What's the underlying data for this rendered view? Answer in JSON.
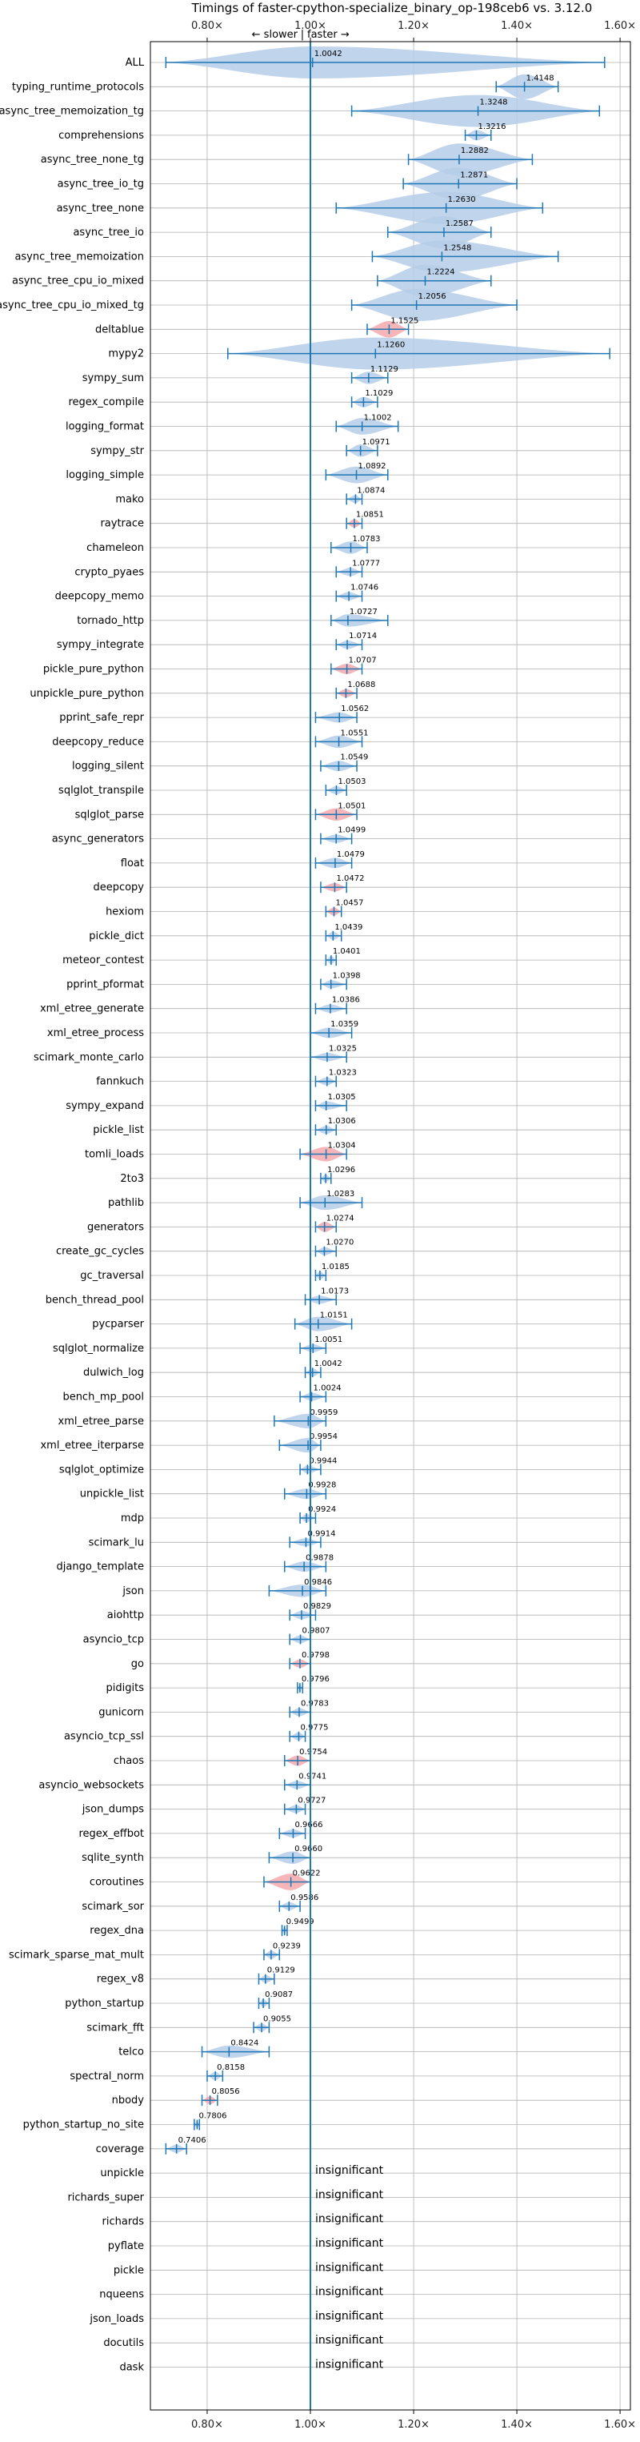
{
  "chart_data": {
    "type": "violin",
    "title": "Timings of faster-cpython-specialize_binary_op-198ceb6 vs. 3.12.0",
    "direction_slower": "← slower",
    "direction_separator": "|",
    "direction_faster": "faster →",
    "xlim": [
      0.69,
      1.62
    ],
    "reference": 1.0,
    "x_ticks": [
      {
        "value": 0.8,
        "label": "0.80×"
      },
      {
        "value": 1.0,
        "label": "1.00×"
      },
      {
        "value": 1.2,
        "label": "1.20×"
      },
      {
        "value": 1.4,
        "label": "1.40×"
      },
      {
        "value": 1.6,
        "label": "1.60×"
      }
    ],
    "grid": true,
    "colors": {
      "normal": "#b5cde8",
      "highlight": "#f4a9ad",
      "line": "#1f77b4",
      "grid": "#b0b0b0"
    },
    "benchmarks": [
      {
        "name": "ALL",
        "value": 1.0042,
        "label": "1.0042",
        "lo": 0.72,
        "hi": 1.57,
        "spread": 0.1
      },
      {
        "name": "typing_runtime_protocols",
        "value": 1.4148,
        "label": "1.4148",
        "lo": 1.36,
        "hi": 1.48,
        "spread": 0.06
      },
      {
        "name": "async_tree_memoization_tg",
        "value": 1.3248,
        "label": "1.3248",
        "lo": 1.08,
        "hi": 1.56,
        "spread": 0.2
      },
      {
        "name": "comprehensions",
        "value": 1.3216,
        "label": "1.3216",
        "lo": 1.3,
        "hi": 1.35,
        "spread": 0.025
      },
      {
        "name": "async_tree_none_tg",
        "value": 1.2882,
        "label": "1.2882",
        "lo": 1.19,
        "hi": 1.43,
        "spread": 0.12
      },
      {
        "name": "async_tree_io_tg",
        "value": 1.2871,
        "label": "1.2871",
        "lo": 1.18,
        "hi": 1.4,
        "spread": 0.11
      },
      {
        "name": "async_tree_none",
        "value": 1.263,
        "label": "1.2630",
        "lo": 1.05,
        "hi": 1.45,
        "spread": 0.18
      },
      {
        "name": "async_tree_io",
        "value": 1.2587,
        "label": "1.2587",
        "lo": 1.15,
        "hi": 1.35,
        "spread": 0.1
      },
      {
        "name": "async_tree_memoization",
        "value": 1.2548,
        "label": "1.2548",
        "lo": 1.12,
        "hi": 1.48,
        "spread": 0.15
      },
      {
        "name": "async_tree_cpu_io_mixed",
        "value": 1.2224,
        "label": "1.2224",
        "lo": 1.13,
        "hi": 1.35,
        "spread": 0.1
      },
      {
        "name": "async_tree_cpu_io_mixed_tg",
        "value": 1.2056,
        "label": "1.2056",
        "lo": 1.08,
        "hi": 1.4,
        "spread": 0.14
      },
      {
        "name": "deltablue",
        "value": 1.1525,
        "label": "1.1525",
        "lo": 1.11,
        "hi": 1.19,
        "spread": 0.04,
        "highlight": true
      },
      {
        "name": "mypy2",
        "value": 1.126,
        "label": "1.1260",
        "lo": 0.84,
        "hi": 1.58,
        "spread": 0.25
      },
      {
        "name": "sympy_sum",
        "value": 1.1129,
        "label": "1.1129",
        "lo": 1.08,
        "hi": 1.15,
        "spread": 0.03
      },
      {
        "name": "regex_compile",
        "value": 1.1029,
        "label": "1.1029",
        "lo": 1.08,
        "hi": 1.13,
        "spread": 0.025
      },
      {
        "name": "logging_format",
        "value": 1.1002,
        "label": "1.1002",
        "lo": 1.05,
        "hi": 1.17,
        "spread": 0.04
      },
      {
        "name": "sympy_str",
        "value": 1.0971,
        "label": "1.0971",
        "lo": 1.07,
        "hi": 1.13,
        "spread": 0.03
      },
      {
        "name": "logging_simple",
        "value": 1.0892,
        "label": "1.0892",
        "lo": 1.03,
        "hi": 1.15,
        "spread": 0.04
      },
      {
        "name": "mako",
        "value": 1.0874,
        "label": "1.0874",
        "lo": 1.07,
        "hi": 1.1,
        "spread": 0.015
      },
      {
        "name": "raytrace",
        "value": 1.0851,
        "label": "1.0851",
        "lo": 1.07,
        "hi": 1.1,
        "spread": 0.02,
        "highlight": true
      },
      {
        "name": "chameleon",
        "value": 1.0783,
        "label": "1.0783",
        "lo": 1.04,
        "hi": 1.11,
        "spread": 0.03
      },
      {
        "name": "crypto_pyaes",
        "value": 1.0777,
        "label": "1.0777",
        "lo": 1.05,
        "hi": 1.1,
        "spread": 0.02
      },
      {
        "name": "deepcopy_memo",
        "value": 1.0746,
        "label": "1.0746",
        "lo": 1.05,
        "hi": 1.1,
        "spread": 0.02
      },
      {
        "name": "tornado_http",
        "value": 1.0727,
        "label": "1.0727",
        "lo": 1.04,
        "hi": 1.15,
        "spread": 0.03
      },
      {
        "name": "sympy_integrate",
        "value": 1.0714,
        "label": "1.0714",
        "lo": 1.05,
        "hi": 1.1,
        "spread": 0.02
      },
      {
        "name": "pickle_pure_python",
        "value": 1.0707,
        "label": "1.0707",
        "lo": 1.04,
        "hi": 1.1,
        "spread": 0.025,
        "highlight": true
      },
      {
        "name": "unpickle_pure_python",
        "value": 1.0688,
        "label": "1.0688",
        "lo": 1.05,
        "hi": 1.09,
        "spread": 0.02,
        "highlight": true
      },
      {
        "name": "pprint_safe_repr",
        "value": 1.0562,
        "label": "1.0562",
        "lo": 1.01,
        "hi": 1.09,
        "spread": 0.025
      },
      {
        "name": "deepcopy_reduce",
        "value": 1.0551,
        "label": "1.0551",
        "lo": 1.01,
        "hi": 1.1,
        "spread": 0.03
      },
      {
        "name": "logging_silent",
        "value": 1.0549,
        "label": "1.0549",
        "lo": 1.02,
        "hi": 1.09,
        "spread": 0.025
      },
      {
        "name": "sqlglot_transpile",
        "value": 1.0503,
        "label": "1.0503",
        "lo": 1.03,
        "hi": 1.07,
        "spread": 0.015
      },
      {
        "name": "sqlglot_parse",
        "value": 1.0501,
        "label": "1.0501",
        "lo": 1.01,
        "hi": 1.09,
        "spread": 0.03,
        "highlight": true
      },
      {
        "name": "async_generators",
        "value": 1.0499,
        "label": "1.0499",
        "lo": 1.02,
        "hi": 1.08,
        "spread": 0.02
      },
      {
        "name": "float",
        "value": 1.0479,
        "label": "1.0479",
        "lo": 1.01,
        "hi": 1.08,
        "spread": 0.025
      },
      {
        "name": "deepcopy",
        "value": 1.0472,
        "label": "1.0472",
        "lo": 1.02,
        "hi": 1.07,
        "spread": 0.02,
        "highlight": true
      },
      {
        "name": "hexiom",
        "value": 1.0457,
        "label": "1.0457",
        "lo": 1.03,
        "hi": 1.06,
        "spread": 0.015,
        "highlight": true
      },
      {
        "name": "pickle_dict",
        "value": 1.0439,
        "label": "1.0439",
        "lo": 1.03,
        "hi": 1.06,
        "spread": 0.01
      },
      {
        "name": "meteor_contest",
        "value": 1.0401,
        "label": "1.0401",
        "lo": 1.03,
        "hi": 1.05,
        "spread": 0.01
      },
      {
        "name": "pprint_pformat",
        "value": 1.0398,
        "label": "1.0398",
        "lo": 1.02,
        "hi": 1.07,
        "spread": 0.02
      },
      {
        "name": "xml_etree_generate",
        "value": 1.0386,
        "label": "1.0386",
        "lo": 1.01,
        "hi": 1.07,
        "spread": 0.02
      },
      {
        "name": "xml_etree_process",
        "value": 1.0359,
        "label": "1.0359",
        "lo": 1.0,
        "hi": 1.08,
        "spread": 0.025
      },
      {
        "name": "scimark_monte_carlo",
        "value": 1.0325,
        "label": "1.0325",
        "lo": 1.0,
        "hi": 1.07,
        "spread": 0.02
      },
      {
        "name": "fannkuch",
        "value": 1.0323,
        "label": "1.0323",
        "lo": 1.01,
        "hi": 1.05,
        "spread": 0.015
      },
      {
        "name": "sympy_expand",
        "value": 1.0305,
        "label": "1.0305",
        "lo": 1.01,
        "hi": 1.07,
        "spread": 0.02
      },
      {
        "name": "pickle_list",
        "value": 1.0306,
        "label": "1.0306",
        "lo": 1.01,
        "hi": 1.05,
        "spread": 0.015
      },
      {
        "name": "tomli_loads",
        "value": 1.0304,
        "label": "1.0304",
        "lo": 0.98,
        "hi": 1.07,
        "spread": 0.035,
        "highlight": true
      },
      {
        "name": "2to3",
        "value": 1.0296,
        "label": "1.0296",
        "lo": 1.02,
        "hi": 1.04,
        "spread": 0.01
      },
      {
        "name": "pathlib",
        "value": 1.0283,
        "label": "1.0283",
        "lo": 0.98,
        "hi": 1.1,
        "spread": 0.035
      },
      {
        "name": "generators",
        "value": 1.0274,
        "label": "1.0274",
        "lo": 1.01,
        "hi": 1.05,
        "spread": 0.025,
        "highlight": true
      },
      {
        "name": "create_gc_cycles",
        "value": 1.027,
        "label": "1.0270",
        "lo": 1.01,
        "hi": 1.05,
        "spread": 0.015
      },
      {
        "name": "gc_traversal",
        "value": 1.0185,
        "label": "1.0185",
        "lo": 1.01,
        "hi": 1.03,
        "spread": 0.01
      },
      {
        "name": "bench_thread_pool",
        "value": 1.0173,
        "label": "1.0173",
        "lo": 0.99,
        "hi": 1.05,
        "spread": 0.01
      },
      {
        "name": "pycparser",
        "value": 1.0151,
        "label": "1.0151",
        "lo": 0.97,
        "hi": 1.08,
        "spread": 0.035
      },
      {
        "name": "sqlglot_normalize",
        "value": 1.0051,
        "label": "1.0051",
        "lo": 0.98,
        "hi": 1.03,
        "spread": 0.015
      },
      {
        "name": "dulwich_log",
        "value": 1.0042,
        "label": "1.0042",
        "lo": 0.99,
        "hi": 1.02,
        "spread": 0.01
      },
      {
        "name": "bench_mp_pool",
        "value": 1.0024,
        "label": "1.0024",
        "lo": 0.98,
        "hi": 1.03,
        "spread": 0.015
      },
      {
        "name": "xml_etree_parse",
        "value": 0.9959,
        "label": "0.9959",
        "lo": 0.93,
        "hi": 1.03,
        "spread": 0.035
      },
      {
        "name": "xml_etree_iterparse",
        "value": 0.9954,
        "label": "0.9954",
        "lo": 0.94,
        "hi": 1.02,
        "spread": 0.035
      },
      {
        "name": "sqlglot_optimize",
        "value": 0.9944,
        "label": "0.9944",
        "lo": 0.98,
        "hi": 1.02,
        "spread": 0.015
      },
      {
        "name": "unpickle_list",
        "value": 0.9928,
        "label": "0.9928",
        "lo": 0.95,
        "hi": 1.03,
        "spread": 0.025
      },
      {
        "name": "mdp",
        "value": 0.9924,
        "label": "0.9924",
        "lo": 0.98,
        "hi": 1.01,
        "spread": 0.01
      },
      {
        "name": "scimark_lu",
        "value": 0.9914,
        "label": "0.9914",
        "lo": 0.96,
        "hi": 1.02,
        "spread": 0.015
      },
      {
        "name": "django_template",
        "value": 0.9878,
        "label": "0.9878",
        "lo": 0.95,
        "hi": 1.03,
        "spread": 0.025
      },
      {
        "name": "json",
        "value": 0.9846,
        "label": "0.9846",
        "lo": 0.92,
        "hi": 1.03,
        "spread": 0.03
      },
      {
        "name": "aiohttp",
        "value": 0.9829,
        "label": "0.9829",
        "lo": 0.96,
        "hi": 1.01,
        "spread": 0.02
      },
      {
        "name": "asyncio_tcp",
        "value": 0.9807,
        "label": "0.9807",
        "lo": 0.96,
        "hi": 1.0,
        "spread": 0.015
      },
      {
        "name": "go",
        "value": 0.9798,
        "label": "0.9798",
        "lo": 0.96,
        "hi": 1.0,
        "spread": 0.02,
        "highlight": true
      },
      {
        "name": "pidigits",
        "value": 0.9796,
        "label": "0.9796",
        "lo": 0.975,
        "hi": 0.985,
        "spread": 0.006
      },
      {
        "name": "gunicorn",
        "value": 0.9783,
        "label": "0.9783",
        "lo": 0.96,
        "hi": 1.0,
        "spread": 0.015
      },
      {
        "name": "asyncio_tcp_ssl",
        "value": 0.9775,
        "label": "0.9775",
        "lo": 0.96,
        "hi": 0.99,
        "spread": 0.01
      },
      {
        "name": "chaos",
        "value": 0.9754,
        "label": "0.9754",
        "lo": 0.95,
        "hi": 1.0,
        "spread": 0.025,
        "highlight": true
      },
      {
        "name": "asyncio_websockets",
        "value": 0.9741,
        "label": "0.9741",
        "lo": 0.95,
        "hi": 1.0,
        "spread": 0.015
      },
      {
        "name": "json_dumps",
        "value": 0.9727,
        "label": "0.9727",
        "lo": 0.95,
        "hi": 0.99,
        "spread": 0.015
      },
      {
        "name": "regex_effbot",
        "value": 0.9666,
        "label": "0.9666",
        "lo": 0.94,
        "hi": 0.99,
        "spread": 0.02
      },
      {
        "name": "sqlite_synth",
        "value": 0.966,
        "label": "0.9660",
        "lo": 0.92,
        "hi": 1.0,
        "spread": 0.03
      },
      {
        "name": "coroutines",
        "value": 0.9622,
        "label": "0.9622",
        "lo": 0.91,
        "hi": 1.0,
        "spread": 0.04,
        "highlight": true
      },
      {
        "name": "scimark_sor",
        "value": 0.9586,
        "label": "0.9586",
        "lo": 0.94,
        "hi": 0.98,
        "spread": 0.015
      },
      {
        "name": "regex_dna",
        "value": 0.9499,
        "label": "0.9499",
        "lo": 0.945,
        "hi": 0.955,
        "spread": 0.006
      },
      {
        "name": "scimark_sparse_mat_mult",
        "value": 0.9239,
        "label": "0.9239",
        "lo": 0.91,
        "hi": 0.94,
        "spread": 0.012
      },
      {
        "name": "regex_v8",
        "value": 0.9129,
        "label": "0.9129",
        "lo": 0.9,
        "hi": 0.93,
        "spread": 0.012
      },
      {
        "name": "python_startup",
        "value": 0.9087,
        "label": "0.9087",
        "lo": 0.9,
        "hi": 0.92,
        "spread": 0.008
      },
      {
        "name": "scimark_fft",
        "value": 0.9055,
        "label": "0.9055",
        "lo": 0.89,
        "hi": 0.92,
        "spread": 0.012
      },
      {
        "name": "telco",
        "value": 0.8424,
        "label": "0.8424",
        "lo": 0.79,
        "hi": 0.92,
        "spread": 0.03
      },
      {
        "name": "spectral_norm",
        "value": 0.8158,
        "label": "0.8158",
        "lo": 0.8,
        "hi": 0.83,
        "spread": 0.012
      },
      {
        "name": "nbody",
        "value": 0.8056,
        "label": "0.8056",
        "lo": 0.79,
        "hi": 0.82,
        "spread": 0.015,
        "highlight": true
      },
      {
        "name": "python_startup_no_site",
        "value": 0.7806,
        "label": "0.7806",
        "lo": 0.775,
        "hi": 0.785,
        "spread": 0.006
      },
      {
        "name": "coverage",
        "value": 0.7406,
        "label": "0.7406",
        "lo": 0.72,
        "hi": 0.76,
        "spread": 0.018
      },
      {
        "name": "unpickle",
        "insignificant": "insignificant"
      },
      {
        "name": "richards_super",
        "insignificant": "insignificant"
      },
      {
        "name": "richards",
        "insignificant": "insignificant"
      },
      {
        "name": "pyflate",
        "insignificant": "insignificant"
      },
      {
        "name": "pickle",
        "insignificant": "insignificant"
      },
      {
        "name": "nqueens",
        "insignificant": "insignificant"
      },
      {
        "name": "json_loads",
        "insignificant": "insignificant"
      },
      {
        "name": "docutils",
        "insignificant": "insignificant"
      },
      {
        "name": "dask",
        "insignificant": "insignificant"
      }
    ]
  }
}
